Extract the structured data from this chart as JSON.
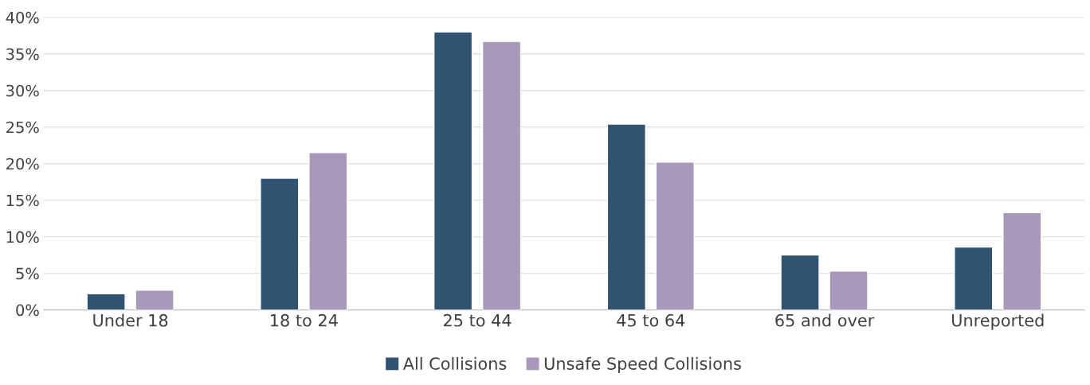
{
  "chart_data": {
    "type": "bar",
    "categories": [
      "Under 18",
      "18 to 24",
      "25 to 44",
      "45 to 64",
      "65 and over",
      "Unreported"
    ],
    "series": [
      {
        "name": "All Collisions",
        "color": "#2f5370",
        "values": [
          2.2,
          18.0,
          38.0,
          25.4,
          7.5,
          8.6
        ]
      },
      {
        "name": "Unsafe Speed Collisions",
        "color": "#a899ba",
        "values": [
          2.7,
          21.5,
          36.7,
          20.2,
          5.3,
          13.3
        ]
      }
    ],
    "ylim": [
      0,
      40
    ],
    "yticks": [
      {
        "value": 0,
        "label": "0%"
      },
      {
        "value": 5,
        "label": "5%"
      },
      {
        "value": 10,
        "label": "10%"
      },
      {
        "value": 15,
        "label": "15%"
      },
      {
        "value": 20,
        "label": "20%"
      },
      {
        "value": 25,
        "label": "25%"
      },
      {
        "value": 30,
        "label": "30%"
      },
      {
        "value": 35,
        "label": "35%"
      },
      {
        "value": 40,
        "label": "40%"
      }
    ],
    "grid": "y",
    "legend": "bottom"
  }
}
